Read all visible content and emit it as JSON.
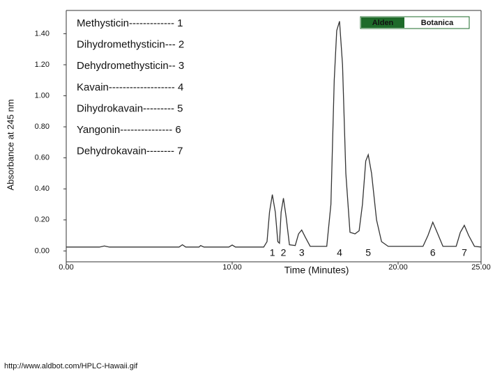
{
  "chart_data": {
    "type": "line",
    "ylabel": "Absorbance at 245 nm",
    "xlabel": "Time (Minutes)",
    "legend_entries": [
      "Methysticin------------- 1",
      "Dihydromethysticin--- 2",
      "Dehydromethysticin-- 3",
      "Kavain------------------- 4",
      "Dihydrokavain--------- 5",
      "Yangonin--------------- 6",
      "Dehydrokavain-------- 7"
    ],
    "logo": [
      "Alden",
      "Botanica"
    ],
    "logo_color": "#1e6b2a",
    "color": "#333333",
    "xlim": [
      0,
      25
    ],
    "ylim": [
      -0.07,
      1.55
    ],
    "xticks": [
      {
        "value": 0,
        "label": "0.00"
      },
      {
        "value": 10,
        "label": "10.00"
      },
      {
        "value": 20,
        "label": "20.00"
      },
      {
        "value": 25,
        "label": "25.00"
      }
    ],
    "yticks": [
      {
        "value": 0,
        "label": "0.00"
      },
      {
        "value": 0.2,
        "label": "0.20"
      },
      {
        "value": 0.4,
        "label": "0.40"
      },
      {
        "value": 0.6,
        "label": "0.60"
      },
      {
        "value": 0.8,
        "label": "0.80"
      },
      {
        "value": 1.0,
        "label": "1.00"
      },
      {
        "value": 1.2,
        "label": "1.20"
      },
      {
        "value": 1.4,
        "label": "1.40"
      }
    ],
    "grid": false,
    "peak_labels": [
      {
        "text": "1",
        "x": 12.42
      },
      {
        "text": "2",
        "x": 13.09
      },
      {
        "text": "3",
        "x": 14.19
      },
      {
        "text": "4",
        "x": 16.47
      },
      {
        "text": "5",
        "x": 18.2
      },
      {
        "text": "6",
        "x": 22.09
      },
      {
        "text": "7",
        "x": 23.99
      }
    ],
    "x": [
      0,
      2.0,
      2.3,
      2.6,
      6.8,
      7.0,
      7.2,
      8.0,
      8.1,
      8.3,
      9.8,
      10.0,
      10.2,
      11.9,
      12.1,
      12.25,
      12.42,
      12.6,
      12.75,
      12.85,
      12.95,
      13.09,
      13.25,
      13.45,
      13.8,
      14.0,
      14.19,
      14.4,
      14.7,
      15.7,
      15.95,
      16.15,
      16.3,
      16.47,
      16.65,
      16.85,
      17.1,
      17.4,
      17.65,
      17.85,
      18.05,
      18.2,
      18.4,
      18.7,
      19.0,
      19.4,
      21.5,
      21.8,
      22.09,
      22.35,
      22.7,
      23.5,
      23.75,
      23.99,
      24.25,
      24.6,
      25
    ],
    "values": [
      0.025,
      0.025,
      0.032,
      0.025,
      0.025,
      0.04,
      0.025,
      0.025,
      0.035,
      0.025,
      0.025,
      0.038,
      0.025,
      0.025,
      0.06,
      0.25,
      0.363,
      0.25,
      0.06,
      0.05,
      0.25,
      0.34,
      0.22,
      0.04,
      0.035,
      0.11,
      0.135,
      0.09,
      0.03,
      0.03,
      0.3,
      1.1,
      1.42,
      1.48,
      1.2,
      0.5,
      0.12,
      0.11,
      0.13,
      0.3,
      0.58,
      0.62,
      0.5,
      0.2,
      0.06,
      0.03,
      0.03,
      0.1,
      0.185,
      0.12,
      0.03,
      0.03,
      0.12,
      0.165,
      0.1,
      0.03,
      0.025
    ]
  },
  "footer": "http://www.aldbot.com/HPLC-Hawaii.gif"
}
